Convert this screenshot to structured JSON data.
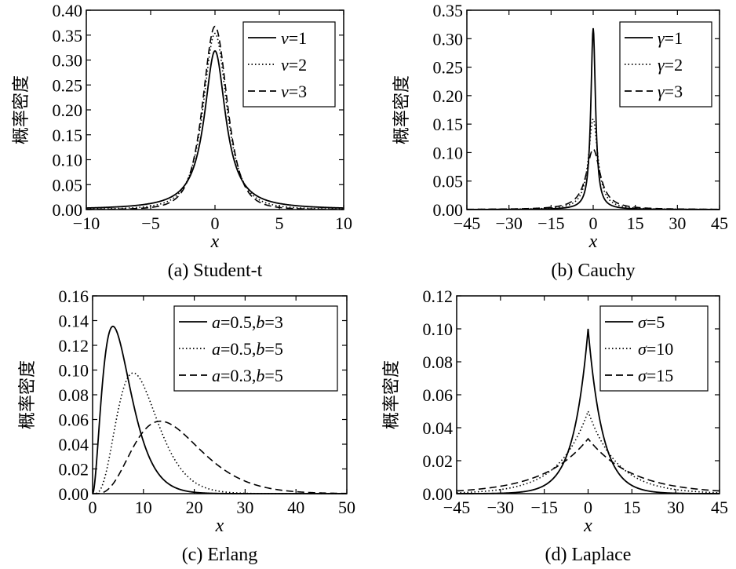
{
  "chart_data": [
    {
      "type": "line",
      "caption": "(a) Student-t",
      "xlabel": "x",
      "ylabel": "概率密度",
      "xlim": [
        -10,
        10
      ],
      "ylim": [
        0,
        0.4
      ],
      "x_ticks": [
        "−10",
        "−5",
        "0",
        "5",
        "10"
      ],
      "y_ticks": [
        "0.00",
        "0.05",
        "0.10",
        "0.15",
        "0.20",
        "0.25",
        "0.30",
        "0.35",
        "0.40"
      ],
      "distribution": "student-t",
      "legend_position": "top-right",
      "series": [
        {
          "name": "v=1",
          "symbol": "v",
          "value_text": "=1",
          "style": "solid",
          "params": {
            "v": 1
          },
          "peak": 0.318
        },
        {
          "name": "v=2",
          "symbol": "v",
          "value_text": "=2",
          "style": "dotted",
          "params": {
            "v": 2
          },
          "peak": 0.354
        },
        {
          "name": "v=3",
          "symbol": "v",
          "value_text": "=3",
          "style": "dashed",
          "params": {
            "v": 3
          },
          "peak": 0.368
        }
      ]
    },
    {
      "type": "line",
      "caption": "(b) Cauchy",
      "xlabel": "x",
      "ylabel": "概率密度",
      "xlim": [
        -45,
        45
      ],
      "ylim": [
        0,
        0.35
      ],
      "x_ticks": [
        "−45",
        "−30",
        "−15",
        "0",
        "15",
        "30",
        "45"
      ],
      "y_ticks": [
        "0.00",
        "0.05",
        "0.10",
        "0.15",
        "0.20",
        "0.25",
        "0.30",
        "0.35"
      ],
      "distribution": "cauchy",
      "legend_position": "top-right",
      "series": [
        {
          "name": "γ=1",
          "symbol": "γ",
          "value_text": "=1",
          "style": "solid",
          "params": {
            "gamma": 1
          },
          "peak": 0.318
        },
        {
          "name": "γ=2",
          "symbol": "γ",
          "value_text": "=2",
          "style": "dotted",
          "params": {
            "gamma": 2
          },
          "peak": 0.159
        },
        {
          "name": "γ=3",
          "symbol": "γ",
          "value_text": "=3",
          "style": "dashed",
          "params": {
            "gamma": 3
          },
          "peak": 0.106
        }
      ]
    },
    {
      "type": "line",
      "caption": "(c) Erlang",
      "xlabel": "x",
      "ylabel": "概率密度",
      "xlim": [
        0,
        50
      ],
      "ylim": [
        0,
        0.16
      ],
      "x_ticks": [
        "0",
        "10",
        "20",
        "30",
        "40",
        "50"
      ],
      "y_ticks": [
        "0.00",
        "0.02",
        "0.04",
        "0.06",
        "0.08",
        "0.10",
        "0.12",
        "0.14",
        "0.16"
      ],
      "distribution": "erlang",
      "legend_position": "top-right",
      "series": [
        {
          "name": "a=0.5,b=3",
          "symbol": "a",
          "value_text": "=0.5,",
          "symbol2": "b",
          "value_text2": "=3",
          "style": "solid",
          "params": {
            "a": 0.5,
            "b": 3
          },
          "peak": 0.135
        },
        {
          "name": "a=0.5,b=5",
          "symbol": "a",
          "value_text": "=0.5,",
          "symbol2": "b",
          "value_text2": "=5",
          "style": "dotted",
          "params": {
            "a": 0.5,
            "b": 5
          },
          "peak": 0.098
        },
        {
          "name": "a=0.3,b=5",
          "symbol": "a",
          "value_text": "=0.3,",
          "symbol2": "b",
          "value_text2": "=5",
          "style": "dashed",
          "params": {
            "a": 0.3,
            "b": 5
          },
          "peak": 0.059
        }
      ]
    },
    {
      "type": "line",
      "caption": "(d) Laplace",
      "xlabel": "x",
      "ylabel": "概率密度",
      "xlim": [
        -45,
        45
      ],
      "ylim": [
        0,
        0.12
      ],
      "x_ticks": [
        "−45",
        "−30",
        "−15",
        "0",
        "15",
        "30",
        "45"
      ],
      "y_ticks": [
        "0.00",
        "0.02",
        "0.04",
        "0.06",
        "0.08",
        "0.10",
        "0.12"
      ],
      "distribution": "laplace",
      "legend_position": "top-right",
      "series": [
        {
          "name": "σ=5",
          "symbol": "σ",
          "value_text": "=5",
          "style": "solid",
          "params": {
            "sigma": 5
          },
          "peak": 0.1
        },
        {
          "name": "σ=10",
          "symbol": "σ",
          "value_text": "=10",
          "style": "dotted",
          "params": {
            "sigma": 10
          },
          "peak": 0.05
        },
        {
          "name": "σ=15",
          "symbol": "σ",
          "value_text": "=15",
          "style": "dashed",
          "params": {
            "sigma": 15
          },
          "peak": 0.033
        }
      ]
    }
  ]
}
